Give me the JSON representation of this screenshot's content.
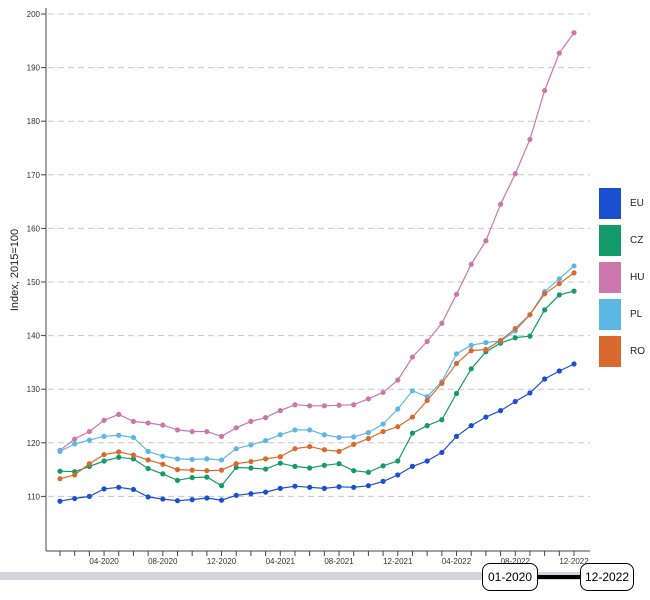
{
  "chart_data": {
    "type": "line",
    "title": "",
    "xlabel": "",
    "ylabel": "Index, 2015=100",
    "ylim": [
      100,
      200
    ],
    "yticks": [
      110,
      120,
      130,
      140,
      150,
      160,
      170,
      180,
      190,
      200
    ],
    "x": [
      "01-2020",
      "02-2020",
      "03-2020",
      "04-2020",
      "05-2020",
      "06-2020",
      "07-2020",
      "08-2020",
      "09-2020",
      "10-2020",
      "11-2020",
      "12-2020",
      "01-2021",
      "02-2021",
      "03-2021",
      "04-2021",
      "05-2021",
      "06-2021",
      "07-2021",
      "08-2021",
      "09-2021",
      "10-2021",
      "11-2021",
      "12-2021",
      "01-2022",
      "02-2022",
      "03-2022",
      "04-2022",
      "05-2022",
      "06-2022",
      "07-2022",
      "08-2022",
      "09-2022",
      "10-2022",
      "11-2022",
      "12-2022"
    ],
    "xtick_labels": [
      "04-2020",
      "08-2020",
      "12-2020",
      "04-2021",
      "08-2021",
      "12-2021",
      "04-2022",
      "08-2022",
      "12-2022"
    ],
    "series": [
      {
        "name": "EU",
        "color": "#1a4fcf",
        "values": [
          109.1,
          109.6,
          110.0,
          111.4,
          111.7,
          111.3,
          109.9,
          109.5,
          109.2,
          109.4,
          109.7,
          109.3,
          110.2,
          110.5,
          110.8,
          111.5,
          111.9,
          111.7,
          111.5,
          111.8,
          111.7,
          112.0,
          112.8,
          114.0,
          115.6,
          116.6,
          118.2,
          121.2,
          123.2,
          124.8,
          126.0,
          127.7,
          129.3,
          131.9,
          133.4,
          134.7
        ]
      },
      {
        "name": "CZ",
        "color": "#14996b",
        "values": [
          114.7,
          114.6,
          115.6,
          116.6,
          117.3,
          117.0,
          115.2,
          114.2,
          113.0,
          113.5,
          113.6,
          112.0,
          115.4,
          115.3,
          115.1,
          116.2,
          115.6,
          115.3,
          115.8,
          116.1,
          114.8,
          114.5,
          115.7,
          116.6,
          121.8,
          123.2,
          124.3,
          129.2,
          133.8,
          137.0,
          138.6,
          139.6,
          139.9,
          144.8,
          147.6,
          148.3
        ]
      },
      {
        "name": "HU",
        "color": "#cc77ab",
        "values": [
          118.6,
          120.7,
          122.1,
          124.2,
          125.3,
          124.0,
          123.7,
          123.3,
          122.4,
          122.1,
          122.1,
          121.2,
          122.8,
          124.0,
          124.7,
          126.0,
          127.1,
          126.9,
          126.9,
          127.0,
          127.1,
          128.2,
          129.4,
          131.7,
          136.0,
          138.9,
          142.3,
          147.7,
          153.3,
          157.7,
          164.5,
          170.2,
          176.6,
          185.7,
          192.7,
          196.5
        ]
      },
      {
        "name": "PL",
        "color": "#5db7e5",
        "values": [
          118.4,
          119.8,
          120.5,
          121.2,
          121.4,
          121.0,
          118.4,
          117.5,
          117.0,
          116.9,
          117.0,
          116.8,
          118.9,
          119.6,
          120.4,
          121.5,
          122.4,
          122.4,
          121.5,
          121.0,
          121.1,
          121.9,
          123.5,
          126.3,
          129.7,
          128.6,
          131.4,
          136.6,
          138.2,
          138.7,
          139.0,
          140.9,
          143.9,
          148.2,
          150.6,
          153.0
        ]
      },
      {
        "name": "RO",
        "color": "#d9692e",
        "values": [
          113.3,
          114.0,
          116.1,
          117.8,
          118.3,
          117.7,
          116.8,
          116.0,
          115.0,
          114.9,
          114.8,
          114.9,
          116.1,
          116.5,
          117.0,
          117.4,
          118.9,
          119.3,
          118.7,
          118.4,
          119.7,
          120.8,
          122.1,
          123.0,
          124.8,
          127.9,
          131.1,
          134.8,
          137.2,
          137.4,
          139.1,
          141.3,
          143.9,
          147.8,
          149.7,
          151.7
        ]
      }
    ]
  },
  "range_selector": {
    "start": "01-2020",
    "end": "12-2022"
  }
}
